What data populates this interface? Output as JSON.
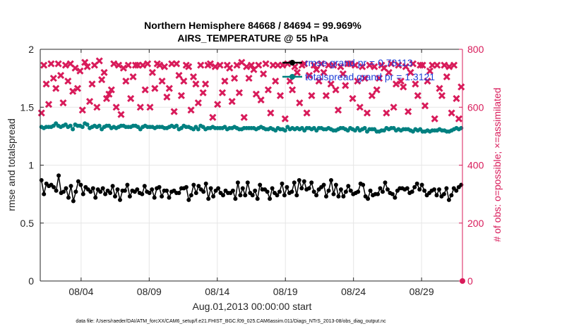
{
  "chart_data": {
    "type": "line",
    "title": "Northern Hemisphere 84668 / 84694 = 99.969%",
    "subtitle": "AIRS_TEMPERATURE @ 55 hPa",
    "xlabel": "Aug.01,2013 00:00:00 start",
    "ylabel_left": "rmse and totalspread",
    "ylabel_right": "# of obs: o=possible; ×=assimilated",
    "ylim_left": [
      0,
      2
    ],
    "ylim_right": [
      0,
      800
    ],
    "xlim": [
      0,
      31
    ],
    "x_ticks": [
      3,
      8,
      13,
      18,
      23,
      28
    ],
    "x_tick_labels": [
      "08/04",
      "08/09",
      "08/14",
      "08/19",
      "08/24",
      "08/29"
    ],
    "y_left_ticks": [
      "0",
      "0.5",
      "1",
      "1.5",
      "2"
    ],
    "y_right_ticks": [
      "0",
      "200",
      "400",
      "600",
      "800"
    ],
    "grid": true,
    "legend_position": "top-right",
    "legend": [
      "rmse grand pr = 0.78113",
      "totalspread grand pr = 1.3121"
    ],
    "footer": "data file: /Users/raeder/DAI/ATM_forcXX/CAM6_setup/f.e21.FHIST_BGC.f09_025.CAM6assim.011/Diags_NTrS_2013-08/obs_diag_output.nc",
    "colors": {
      "rmse": "#000000",
      "spread": "#008080",
      "obs": "#d81b5a",
      "legend_text": "#1f3fd8"
    },
    "series": [
      {
        "name": "rmse",
        "axis": "left",
        "values": [
          0.87,
          0.75,
          0.84,
          0.82,
          0.83,
          0.81,
          0.78,
          0.91,
          0.76,
          0.77,
          0.8,
          0.72,
          0.82,
          0.69,
          0.77,
          0.86,
          0.83,
          0.75,
          0.81,
          0.79,
          0.77,
          0.8,
          0.72,
          0.79,
          0.77,
          0.8,
          0.75,
          0.78,
          0.76,
          0.82,
          0.73,
          0.79,
          0.7,
          0.78,
          0.78,
          0.83,
          0.73,
          0.78,
          0.77,
          0.79,
          0.76,
          0.75,
          0.82,
          0.77,
          0.76,
          0.79,
          0.72,
          0.8,
          0.81,
          0.73,
          0.78,
          0.78,
          0.72,
          0.77,
          0.78,
          0.76,
          0.76,
          0.8,
          0.8,
          0.81,
          0.7,
          0.74,
          0.83,
          0.76,
          0.82,
          0.79,
          0.77,
          0.84,
          0.71,
          0.8,
          0.73,
          0.78,
          0.8,
          0.76,
          0.74,
          0.78,
          0.76,
          0.76,
          0.78,
          0.71,
          0.85,
          0.74,
          0.8,
          0.74,
          0.85,
          0.76,
          0.74,
          0.78,
          0.71,
          0.83,
          0.79,
          0.79,
          0.77,
          0.71,
          0.8,
          0.76,
          0.74,
          0.77,
          0.84,
          0.74,
          0.81,
          0.76,
          0.77,
          0.85,
          0.74,
          0.87,
          0.8,
          0.86,
          0.79,
          0.8,
          0.85,
          0.77,
          0.74,
          0.79,
          0.81,
          0.83,
          0.73,
          0.78,
          0.87,
          0.75,
          0.83,
          0.73,
          0.79,
          0.73,
          0.77,
          0.82,
          0.78,
          0.75,
          0.76,
          0.77,
          0.84,
          0.83,
          0.73,
          0.71,
          0.78,
          0.74,
          0.75,
          0.75,
          0.8,
          0.77,
          0.85,
          0.79,
          0.76,
          0.75,
          0.72,
          0.78,
          0.8,
          0.8,
          0.79,
          0.8,
          0.76,
          0.77,
          0.81,
          0.84,
          0.79,
          0.83,
          0.78,
          0.74,
          0.76,
          0.78,
          0.79,
          0.74,
          0.79,
          0.73,
          0.75,
          0.8,
          0.7,
          0.74,
          0.8,
          0.78,
          0.81,
          0.83
        ]
      },
      {
        "name": "totalspread",
        "axis": "left",
        "values": [
          1.33,
          1.32,
          1.33,
          1.33,
          1.33,
          1.34,
          1.36,
          1.34,
          1.33,
          1.34,
          1.35,
          1.33,
          1.34,
          1.31,
          1.35,
          1.34,
          1.34,
          1.33,
          1.36,
          1.35,
          1.32,
          1.33,
          1.34,
          1.33,
          1.34,
          1.31,
          1.33,
          1.34,
          1.34,
          1.32,
          1.33,
          1.32,
          1.33,
          1.34,
          1.34,
          1.33,
          1.33,
          1.33,
          1.34,
          1.34,
          1.33,
          1.31,
          1.33,
          1.34,
          1.33,
          1.33,
          1.33,
          1.32,
          1.33,
          1.33,
          1.33,
          1.32,
          1.32,
          1.33,
          1.34,
          1.33,
          1.34,
          1.31,
          1.32,
          1.34,
          1.33,
          1.33,
          1.32,
          1.31,
          1.33,
          1.31,
          1.34,
          1.33,
          1.31,
          1.32,
          1.32,
          1.33,
          1.32,
          1.32,
          1.32,
          1.32,
          1.33,
          1.31,
          1.32,
          1.32,
          1.33,
          1.32,
          1.31,
          1.31,
          1.32,
          1.32,
          1.32,
          1.32,
          1.32,
          1.31,
          1.32,
          1.33,
          1.32,
          1.31,
          1.31,
          1.32,
          1.31,
          1.3,
          1.32,
          1.31,
          1.31,
          1.3,
          1.33,
          1.31,
          1.32,
          1.31,
          1.32,
          1.31,
          1.32,
          1.3,
          1.32,
          1.32,
          1.31,
          1.32,
          1.3,
          1.32,
          1.32,
          1.31,
          1.31,
          1.32,
          1.31,
          1.3,
          1.3,
          1.31,
          1.32,
          1.32,
          1.31,
          1.3,
          1.32,
          1.31,
          1.3,
          1.32,
          1.3,
          1.31,
          1.32,
          1.29,
          1.31,
          1.31,
          1.31,
          1.29,
          1.29,
          1.3,
          1.3,
          1.32,
          1.31,
          1.32,
          1.32,
          1.3,
          1.31,
          1.3,
          1.31,
          1.31,
          1.31,
          1.3,
          1.29,
          1.31,
          1.3,
          1.31,
          1.29,
          1.29,
          1.3,
          1.29,
          1.3,
          1.3,
          1.3,
          1.31,
          1.3,
          1.3,
          1.29,
          1.29,
          1.3,
          1.31,
          1.32,
          1.31,
          1.32
        ]
      },
      {
        "name": "obs_count",
        "axis": "right",
        "marker": "cross",
        "values": [
          580,
          745,
          680,
          610,
          750,
          700,
          665,
          750,
          710,
          615,
          745,
          690,
          750,
          655,
          735,
          665,
          725,
          590,
          755,
          740,
          620,
          680,
          745,
          600,
          760,
          695,
          720,
          630,
          645,
          660,
          750,
          600,
          745,
          575,
          735,
          690,
          745,
          630,
          705,
          745,
          745,
          600,
          745,
          660,
          750,
          600,
          720,
          665,
          750,
          745,
          690,
          740,
          635,
          665,
          750,
          585,
          750,
          710,
          640,
          690,
          745,
          740,
          590,
          705,
          680,
          615,
          745,
          650,
          680,
          745,
          750,
          565,
          740,
          610,
          745,
          650,
          690,
          745,
          735,
          620,
          700,
          745,
          650,
          755,
          565,
          740,
          700,
          745,
          730,
          645,
          745,
          625,
          715,
          750,
          660,
          580,
          745,
          690,
          745,
          640,
          745,
          560,
          750,
          690,
          660,
          740,
          720,
          615,
          745,
          750,
          580,
          710,
          640,
          745,
          730,
          690,
          750,
          720,
          640,
          745,
          680,
          745,
          660,
          590,
          740,
          715,
          675,
          750,
          750,
          630,
          745,
          690,
          600,
          740,
          700,
          580,
          745,
          640,
          740,
          660,
          700,
          745,
          735,
          580,
          720,
          750,
          600,
          680,
          745,
          690,
          670,
          740,
          585,
          720,
          750,
          680,
          640,
          745,
          745,
          605,
          690,
          725,
          745,
          560,
          745,
          665,
          640,
          745,
          705,
          740,
          580,
          745,
          630,
          560,
          670
        ]
      }
    ]
  }
}
